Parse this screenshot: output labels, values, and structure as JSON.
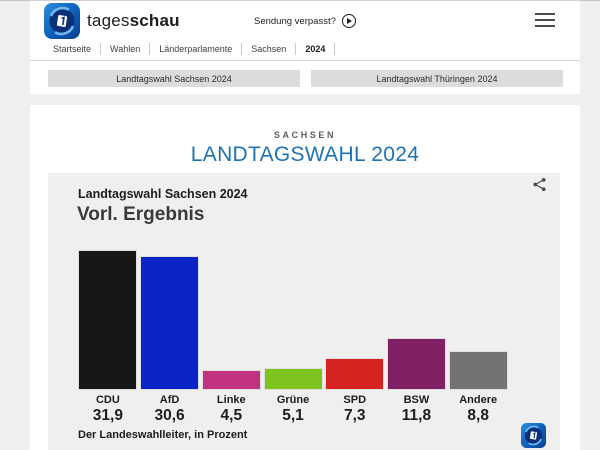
{
  "header": {
    "brand_regular": "tages",
    "brand_bold": "schau",
    "broadcast_label": "Sendung verpasst?"
  },
  "breadcrumb": [
    "Startseite",
    "Wahlen",
    "Länderparlamente",
    "Sachsen",
    "2024"
  ],
  "tabs": [
    {
      "label": "Landtagswahl Sachsen 2024"
    },
    {
      "label": "Landtagswahl Thüringen 2024"
    }
  ],
  "page": {
    "kicker": "SACHSEN",
    "title": "LANDTAGSWAHL 2024",
    "title_color": "#1e73b5"
  },
  "chart": {
    "subtitle": "Landtagswahl Sachsen 2024",
    "title": "Vorl. Ergebnis",
    "source": "Der Landeswahlleiter, in Prozent"
  },
  "chart_data": {
    "type": "bar",
    "title": "Vorl. Ergebnis",
    "subtitle": "Landtagswahl Sachsen 2024",
    "categories": [
      "CDU",
      "AfD",
      "Linke",
      "Grüne",
      "SPD",
      "BSW",
      "Andere"
    ],
    "values": [
      31.9,
      30.6,
      4.5,
      5.1,
      7.3,
      11.8,
      8.8
    ],
    "value_labels": [
      "31,9",
      "30,6",
      "4,5",
      "5,1",
      "7,3",
      "11,8",
      "8,8"
    ],
    "colors": [
      "#161614",
      "#0b24c8",
      "#c1337f",
      "#7dc41f",
      "#d72222",
      "#822066",
      "#737376"
    ],
    "ylabel": "Prozent",
    "ylim": [
      0,
      32
    ],
    "grid": false,
    "legend": false,
    "source": "Der Landeswahlleiter, in Prozent"
  }
}
